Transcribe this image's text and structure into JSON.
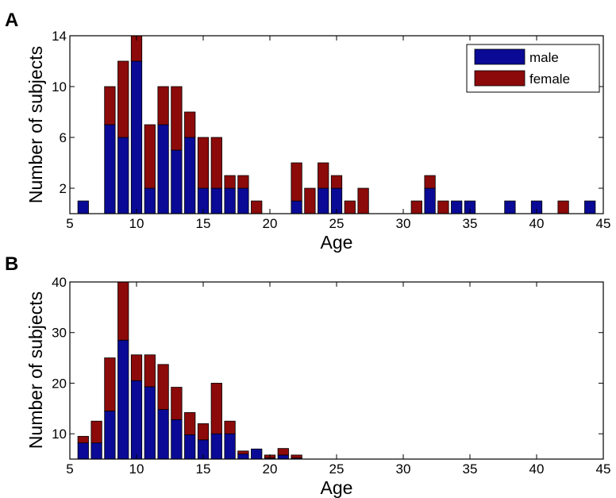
{
  "colors": {
    "male": "#0a0a96",
    "female": "#8c0a0a",
    "edge": "#000000",
    "background": "#ffffff"
  },
  "chart_data": [
    {
      "panel": "A",
      "type": "bar",
      "stacked": true,
      "xlabel": "Age",
      "ylabel": "Number of subjects",
      "xlim": [
        5,
        45
      ],
      "ylim": [
        0,
        14
      ],
      "xticks": [
        5,
        10,
        15,
        20,
        25,
        30,
        35,
        40,
        45
      ],
      "yticks": [
        2,
        6,
        10,
        14
      ],
      "legend": {
        "position": "top-right",
        "entries": [
          "male",
          "female"
        ]
      },
      "x": [
        6,
        8,
        9,
        10,
        11,
        12,
        13,
        14,
        15,
        16,
        17,
        18,
        19,
        22,
        23,
        24,
        25,
        26,
        27,
        31,
        32,
        33,
        34,
        35,
        38,
        40,
        42,
        44
      ],
      "series": [
        {
          "name": "male",
          "values": [
            1,
            7,
            6,
            12,
            2,
            7,
            5,
            6,
            2,
            2,
            2,
            2,
            0,
            1,
            0,
            2,
            2,
            0,
            0,
            0,
            2,
            0,
            1,
            1,
            1,
            1,
            0,
            1
          ]
        },
        {
          "name": "female",
          "values": [
            0,
            3,
            6,
            2,
            5,
            3,
            5,
            2,
            4,
            4,
            1,
            1,
            1,
            3,
            2,
            2,
            1,
            1,
            2,
            1,
            1,
            1,
            0,
            0,
            0,
            0,
            1,
            0
          ]
        }
      ]
    },
    {
      "panel": "B",
      "type": "bar",
      "stacked": true,
      "xlabel": "Age",
      "ylabel": "Number of subjects",
      "xlim": [
        5,
        45
      ],
      "ylim": [
        5,
        40
      ],
      "xticks": [
        5,
        10,
        15,
        20,
        25,
        30,
        35,
        40,
        45
      ],
      "yticks": [
        10,
        20,
        30,
        40
      ],
      "x": [
        6,
        7,
        8,
        9,
        10,
        11,
        12,
        13,
        14,
        15,
        16,
        17,
        18,
        19,
        20,
        21,
        22
      ],
      "series": [
        {
          "name": "male",
          "values": [
            8.2,
            8.2,
            14.5,
            28.5,
            20.5,
            19.3,
            14.8,
            12.8,
            9.8,
            8.8,
            10,
            10,
            6,
            7,
            5.2,
            5.8,
            5.2
          ]
        },
        {
          "name": "female",
          "values": [
            1.3,
            4.3,
            10.5,
            11.5,
            5.1,
            6.3,
            8.9,
            6.4,
            4.4,
            3.2,
            10,
            2.5,
            0.6,
            0,
            0.6,
            1.3,
            0.6
          ]
        }
      ]
    }
  ]
}
